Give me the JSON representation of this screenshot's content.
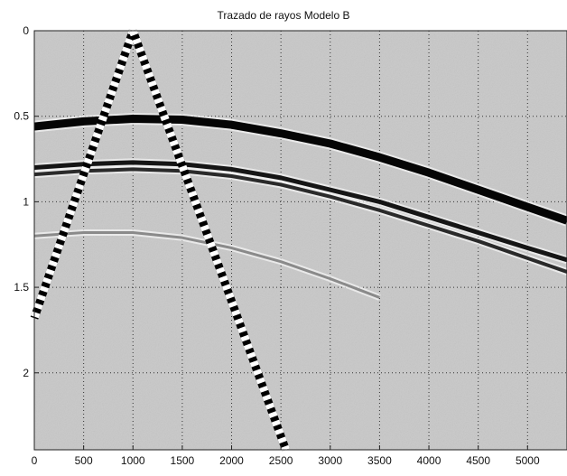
{
  "chart_data": {
    "type": "line",
    "title": "Trazado de rayos Modelo B",
    "xlabel": "",
    "ylabel": "",
    "xlim": [
      0,
      5400
    ],
    "ylim": [
      0,
      2.45
    ],
    "y_reversed": true,
    "grid": true,
    "x_ticks": [
      0,
      500,
      1000,
      1500,
      2000,
      2500,
      3000,
      3500,
      4000,
      4500,
      5000
    ],
    "y_ticks": [
      0,
      0.5,
      1,
      1.5,
      2
    ],
    "x_tick_labels": [
      "0",
      "500",
      "1000",
      "1500",
      "2000",
      "2500",
      "3000",
      "3500",
      "4000",
      "4500",
      "5000"
    ],
    "y_tick_labels": [
      "0",
      "0.5",
      "1",
      "1.5",
      "2"
    ],
    "rays": [
      {
        "x": [
          1000,
          0
        ],
        "y": [
          0,
          1.68
        ]
      },
      {
        "x": [
          1000,
          2550
        ],
        "y": [
          0,
          2.45
        ]
      }
    ],
    "reflectors": [
      {
        "x": [
          0,
          500,
          1000,
          1500,
          2000,
          2500,
          3000,
          3500,
          4000,
          4500,
          5000,
          5400
        ],
        "y": [
          0.56,
          0.53,
          0.515,
          0.52,
          0.55,
          0.6,
          0.66,
          0.74,
          0.83,
          0.93,
          1.03,
          1.11
        ]
      },
      {
        "x": [
          0,
          500,
          1000,
          1500,
          2000,
          2500,
          3000,
          3500,
          4000,
          4500,
          5000,
          5400
        ],
        "y": [
          0.8,
          0.78,
          0.77,
          0.78,
          0.81,
          0.86,
          0.93,
          1.0,
          1.09,
          1.18,
          1.27,
          1.34
        ]
      },
      {
        "x": [
          0,
          500,
          1000,
          1500,
          2000,
          2500,
          3000,
          3500,
          4000,
          4500,
          5000,
          5400
        ],
        "y": [
          0.84,
          0.82,
          0.81,
          0.82,
          0.85,
          0.9,
          0.97,
          1.05,
          1.14,
          1.23,
          1.33,
          1.41
        ]
      },
      {
        "x": [
          0,
          500,
          1000,
          1500,
          2000,
          2500,
          3000,
          3500
        ],
        "y": [
          1.2,
          1.18,
          1.18,
          1.21,
          1.27,
          1.35,
          1.45,
          1.56
        ]
      }
    ],
    "colors": {
      "background": "#ffffff",
      "plot_area": "#c8c8c8",
      "ray": "#000000",
      "reflector": "#000000"
    }
  }
}
